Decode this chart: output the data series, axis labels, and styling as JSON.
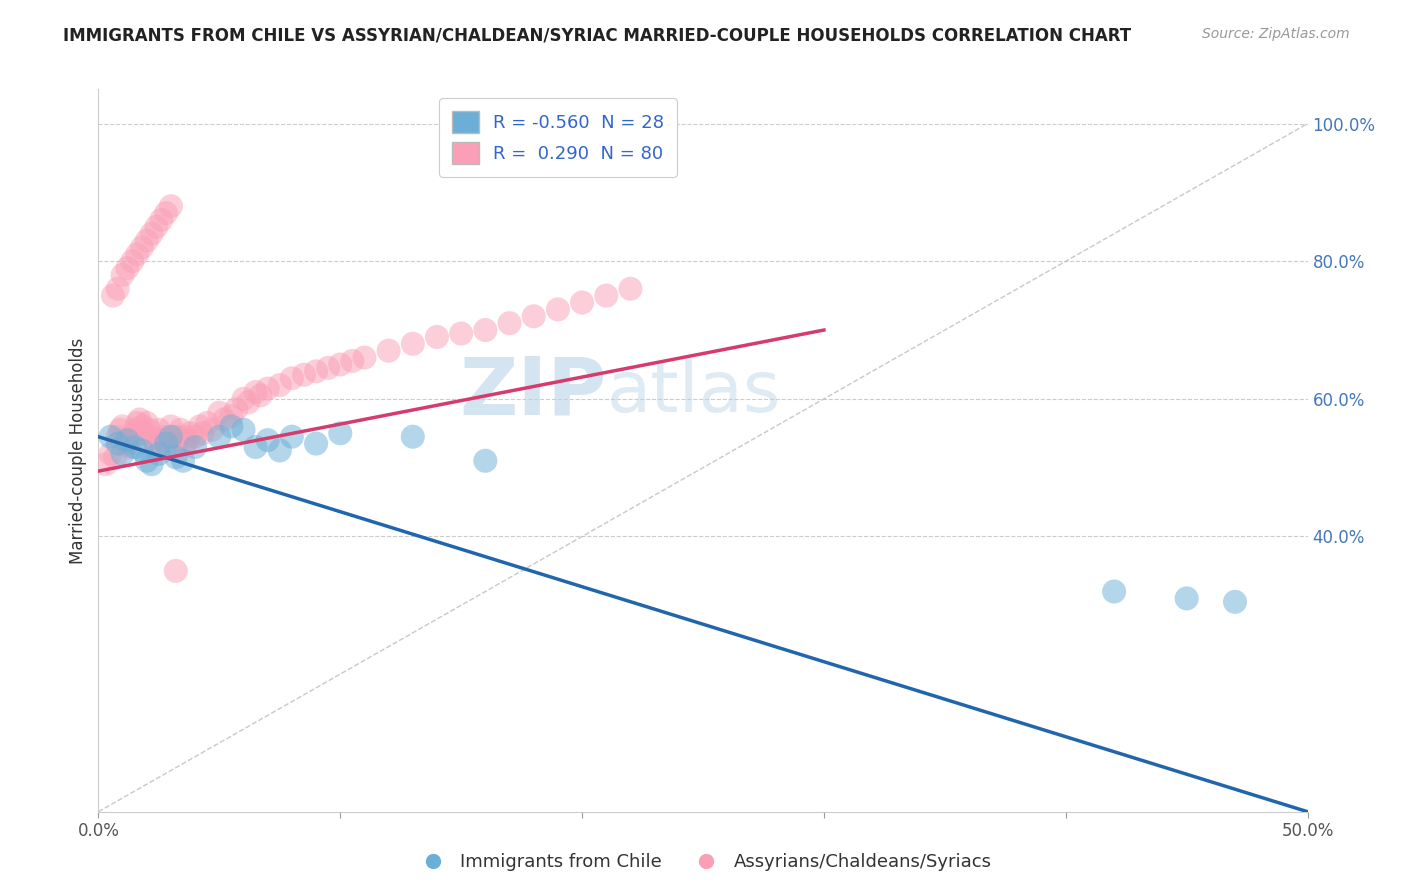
{
  "title": "IMMIGRANTS FROM CHILE VS ASSYRIAN/CHALDEAN/SYRIAC MARRIED-COUPLE HOUSEHOLDS CORRELATION CHART",
  "source": "Source: ZipAtlas.com",
  "ylabel": "Married-couple Households",
  "blue_label": "Immigrants from Chile",
  "pink_label": "Assyrians/Chaldeans/Syriacs",
  "legend_R_blue": "-0.560",
  "legend_N_blue": "28",
  "legend_R_pink": "0.290",
  "legend_N_pink": "80",
  "blue_color": "#6baed6",
  "pink_color": "#fa9fb5",
  "blue_line_color": "#2166ac",
  "pink_line_color": "#d63b6e",
  "watermark_zip": "ZIP",
  "watermark_atlas": "atlas",
  "xmin": 0.0,
  "xmax": 0.5,
  "ymin": 0.0,
  "ymax": 1.05,
  "right_ytick_vals": [
    0.4,
    0.6,
    0.8,
    1.0
  ],
  "right_yticklabels": [
    "40.0%",
    "60.0%",
    "80.0%",
    "100.0%"
  ],
  "grid_lines": [
    0.4,
    0.6,
    0.8,
    1.0
  ],
  "blue_trend_x0": 0.0,
  "blue_trend_y0": 0.545,
  "blue_trend_x1": 0.5,
  "blue_trend_y1": 0.0,
  "pink_trend_x0": 0.0,
  "pink_trend_y0": 0.495,
  "pink_trend_x1": 0.3,
  "pink_trend_y1": 0.7,
  "ref_line_x0": 0.0,
  "ref_line_y0": 0.0,
  "ref_line_x1": 0.5,
  "ref_line_y1": 1.0,
  "blue_scatter_x": [
    0.005,
    0.008,
    0.01,
    0.012,
    0.015,
    0.018,
    0.02,
    0.022,
    0.025,
    0.028,
    0.03,
    0.032,
    0.035,
    0.04,
    0.05,
    0.055,
    0.06,
    0.065,
    0.07,
    0.075,
    0.08,
    0.09,
    0.1,
    0.13,
    0.16,
    0.42,
    0.45,
    0.47
  ],
  "blue_scatter_y": [
    0.545,
    0.535,
    0.52,
    0.54,
    0.53,
    0.525,
    0.51,
    0.505,
    0.52,
    0.535,
    0.545,
    0.515,
    0.51,
    0.53,
    0.545,
    0.56,
    0.555,
    0.53,
    0.54,
    0.525,
    0.545,
    0.535,
    0.55,
    0.545,
    0.51,
    0.32,
    0.31,
    0.305
  ],
  "pink_scatter_x": [
    0.003,
    0.005,
    0.007,
    0.008,
    0.009,
    0.01,
    0.011,
    0.012,
    0.013,
    0.014,
    0.015,
    0.016,
    0.017,
    0.018,
    0.019,
    0.02,
    0.021,
    0.022,
    0.023,
    0.024,
    0.025,
    0.026,
    0.027,
    0.028,
    0.03,
    0.031,
    0.032,
    0.033,
    0.034,
    0.035,
    0.036,
    0.037,
    0.038,
    0.04,
    0.042,
    0.043,
    0.045,
    0.047,
    0.05,
    0.052,
    0.055,
    0.057,
    0.06,
    0.062,
    0.065,
    0.067,
    0.07,
    0.075,
    0.08,
    0.085,
    0.09,
    0.095,
    0.1,
    0.105,
    0.11,
    0.12,
    0.13,
    0.14,
    0.15,
    0.16,
    0.17,
    0.18,
    0.19,
    0.2,
    0.21,
    0.22,
    0.006,
    0.008,
    0.01,
    0.012,
    0.014,
    0.016,
    0.018,
    0.02,
    0.022,
    0.024,
    0.026,
    0.028,
    0.03,
    0.032
  ],
  "pink_scatter_y": [
    0.505,
    0.52,
    0.515,
    0.545,
    0.555,
    0.56,
    0.54,
    0.535,
    0.53,
    0.545,
    0.555,
    0.565,
    0.57,
    0.56,
    0.55,
    0.565,
    0.555,
    0.545,
    0.54,
    0.53,
    0.555,
    0.54,
    0.545,
    0.53,
    0.56,
    0.545,
    0.53,
    0.545,
    0.555,
    0.545,
    0.535,
    0.54,
    0.55,
    0.545,
    0.56,
    0.55,
    0.565,
    0.555,
    0.58,
    0.57,
    0.575,
    0.585,
    0.6,
    0.595,
    0.61,
    0.605,
    0.615,
    0.62,
    0.63,
    0.635,
    0.64,
    0.645,
    0.65,
    0.655,
    0.66,
    0.67,
    0.68,
    0.69,
    0.695,
    0.7,
    0.71,
    0.72,
    0.73,
    0.74,
    0.75,
    0.76,
    0.75,
    0.76,
    0.78,
    0.79,
    0.8,
    0.81,
    0.82,
    0.83,
    0.84,
    0.85,
    0.86,
    0.87,
    0.88,
    0.35
  ]
}
